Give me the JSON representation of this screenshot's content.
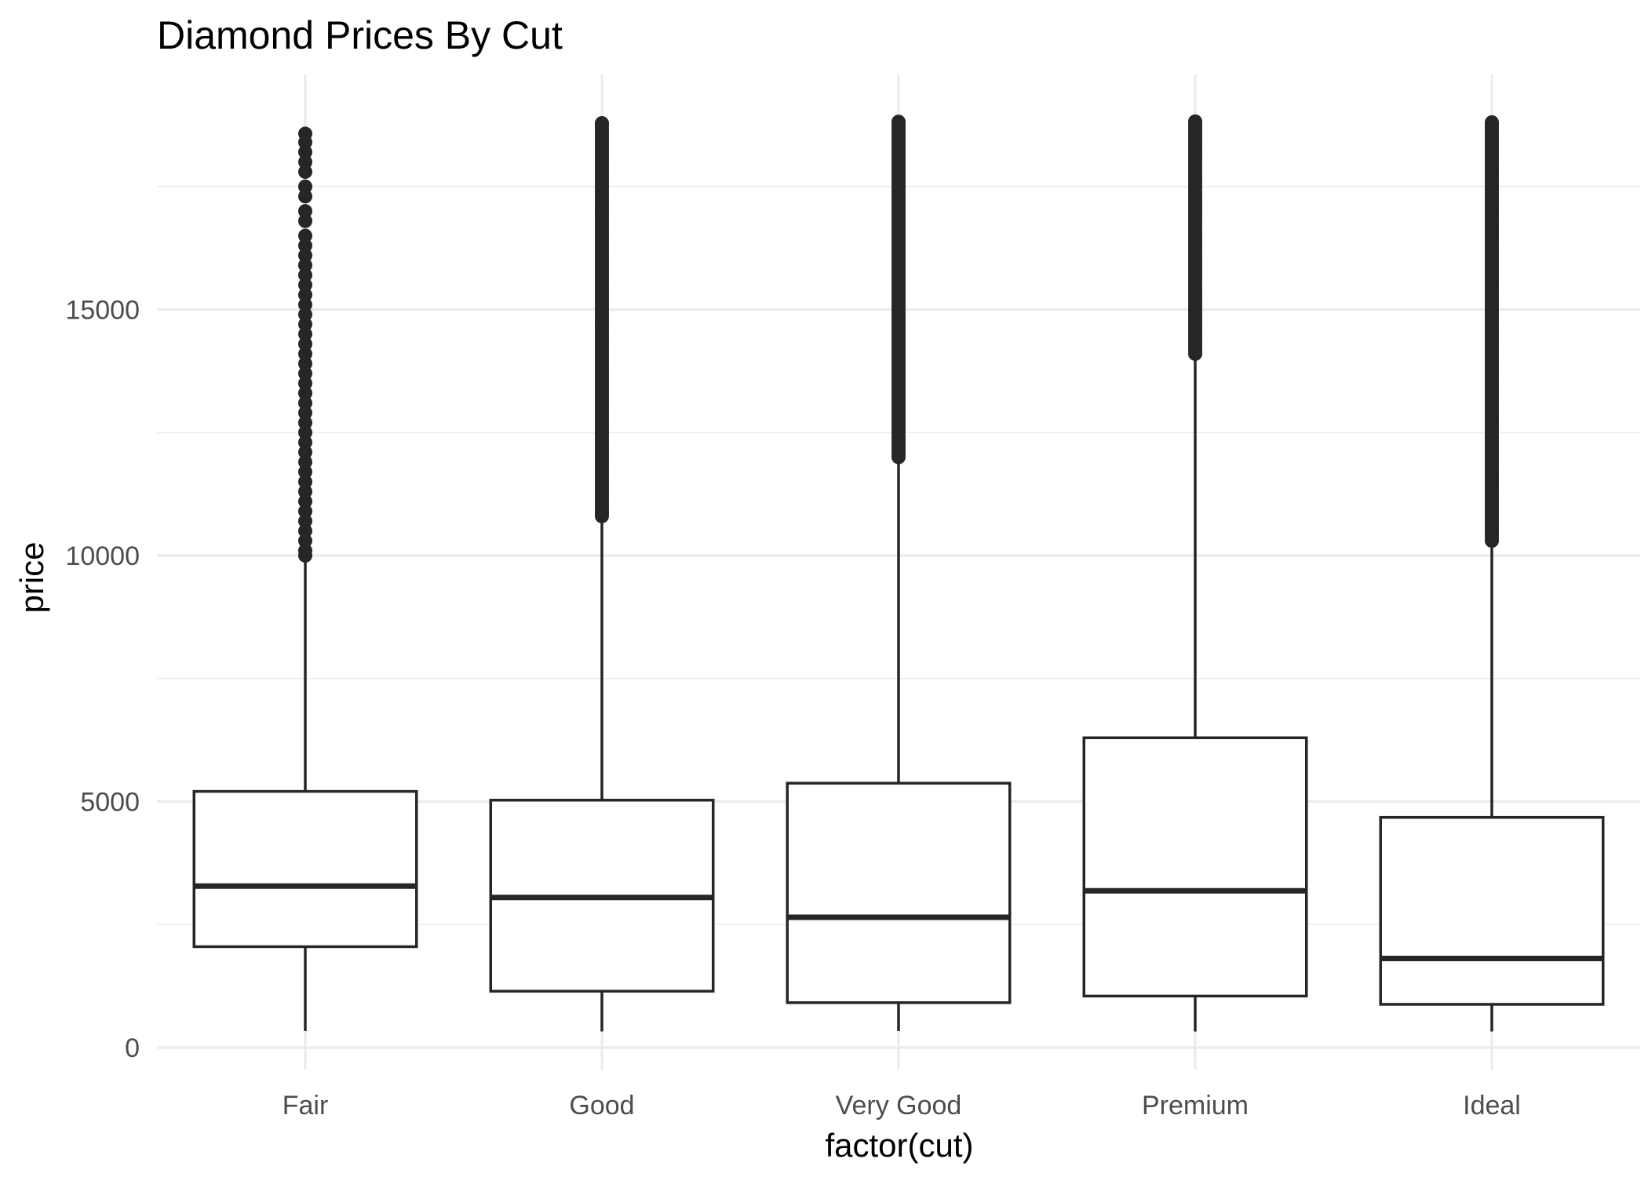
{
  "chart_data": {
    "type": "boxplot",
    "title": "Diamond Prices By Cut",
    "xlabel": "factor(cut)",
    "ylabel": "price",
    "ylim": [
      -800,
      19800
    ],
    "yticks": [
      0,
      5000,
      10000,
      15000
    ],
    "y_minor_ticks": [
      2500,
      7500,
      12500,
      17500
    ],
    "grid": true,
    "categories": [
      "Fair",
      "Good",
      "Very Good",
      "Premium",
      "Ideal"
    ],
    "series": [
      {
        "category": "Fair",
        "min": 337,
        "q1": 2050,
        "median": 3282,
        "q3": 5206,
        "whisker_high": 9980,
        "outliers_range": [
          10000,
          18574
        ],
        "outliers": [
          18574,
          18400,
          18200,
          18000,
          17800,
          17500,
          17300,
          17000,
          16800,
          16500,
          16300,
          16100,
          15900,
          15700,
          15500,
          15300,
          15100,
          14900,
          14700,
          14500,
          14300,
          14100,
          13900,
          13700,
          13500,
          13300,
          13100,
          12900,
          12700,
          12500,
          12300,
          12100,
          11900,
          11700,
          11500,
          11300,
          11100,
          10900,
          10700,
          10500,
          10300,
          10100,
          10000
        ]
      },
      {
        "category": "Good",
        "min": 327,
        "q1": 1145,
        "median": 3050,
        "q3": 5028,
        "whisker_high": 10800,
        "outliers_range": [
          10800,
          18788
        ]
      },
      {
        "category": "Very Good",
        "min": 336,
        "q1": 912,
        "median": 2648,
        "q3": 5373,
        "whisker_high": 12000,
        "outliers_range": [
          12000,
          18818
        ]
      },
      {
        "category": "Premium",
        "min": 326,
        "q1": 1046,
        "median": 3185,
        "q3": 6296,
        "whisker_high": 14100,
        "outliers_range": [
          14100,
          18823
        ]
      },
      {
        "category": "Ideal",
        "min": 326,
        "q1": 878,
        "median": 1810,
        "q3": 4678,
        "whisker_high": 10300,
        "outliers_range": [
          10300,
          18806
        ]
      }
    ],
    "colors": {
      "box_stroke": "#262626",
      "box_fill": "#ffffff",
      "grid": "#ebebeb",
      "tick_text": "#4d4d4d",
      "background": "#ffffff"
    }
  }
}
